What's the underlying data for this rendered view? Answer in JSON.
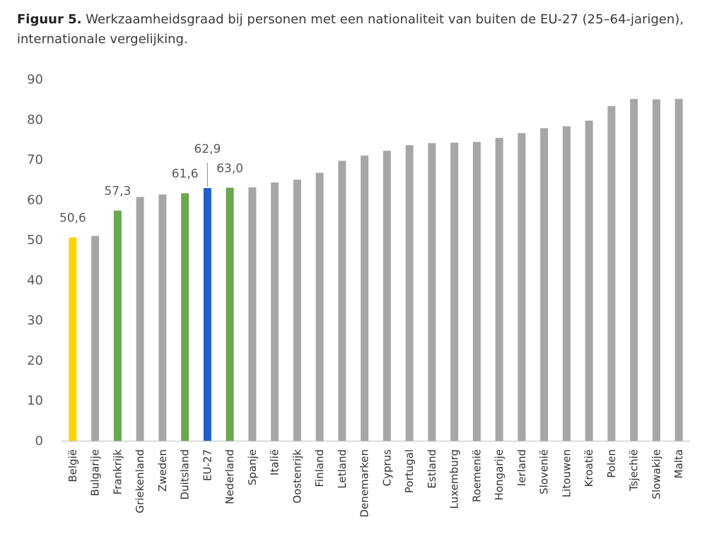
{
  "caption": {
    "label": "Figuur 5.",
    "text": "Werkzaamheidsgraad bij personen met een nationaliteit van buiten de EU-27 (25–64-jarigen), internationale vergelijking."
  },
  "colors": {
    "default": "#a6a6a6",
    "highlight_belgium": "#ffd200",
    "highlight_green": "#6aa84f",
    "highlight_eu": "#1f5fc8"
  },
  "chart_data": {
    "type": "bar",
    "categories": [
      "België",
      "Bulgarije",
      "Frankrijk",
      "Griekenland",
      "Zweden",
      "Duitsland",
      "EU-27",
      "Nederland",
      "Spanje",
      "Italië",
      "Oostenrijk",
      "Finland",
      "Letland",
      "Denemarken",
      "Cyprus",
      "Portugal",
      "Estland",
      "Luxemburg",
      "Roemenië",
      "Hongarije",
      "Ierland",
      "Slovenië",
      "Litouwen",
      "Kroatië",
      "Polen",
      "Tsjechië",
      "Slowakije",
      "Malta"
    ],
    "values": [
      50.6,
      51.0,
      57.3,
      60.7,
      61.3,
      61.6,
      62.9,
      63.0,
      63.1,
      64.3,
      65.0,
      66.7,
      69.7,
      71.0,
      72.2,
      73.6,
      74.1,
      74.2,
      74.4,
      75.4,
      76.6,
      77.8,
      78.3,
      79.7,
      83.3,
      85.1,
      85.0,
      85.1
    ],
    "colors": [
      "highlight_belgium",
      "default",
      "highlight_green",
      "default",
      "default",
      "highlight_green",
      "highlight_eu",
      "highlight_green",
      "default",
      "default",
      "default",
      "default",
      "default",
      "default",
      "default",
      "default",
      "default",
      "default",
      "default",
      "default",
      "default",
      "default",
      "default",
      "default",
      "default",
      "default",
      "default",
      "default"
    ],
    "data_labels": {
      "0": "50,6",
      "2": "57,3",
      "5": "61,6",
      "6": "62,9",
      "7": "63,0"
    },
    "ylim": [
      0,
      90
    ],
    "yticks": [
      0,
      10,
      20,
      30,
      40,
      50,
      60,
      70,
      80,
      90
    ],
    "xlabel": "",
    "ylabel": "",
    "grid": false,
    "legend": "none"
  }
}
